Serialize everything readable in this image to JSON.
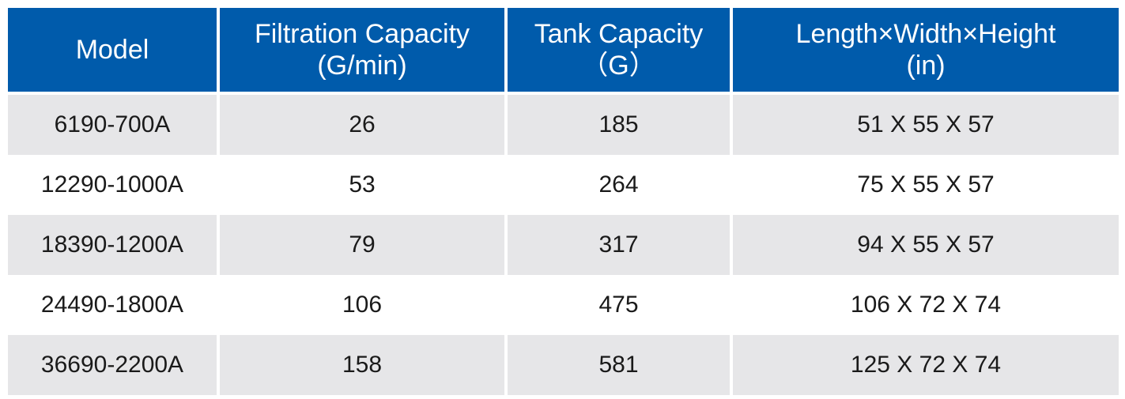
{
  "header": {
    "model": "Model",
    "filtration_line1": "Filtration Capacity",
    "filtration_line2": "(G/min)",
    "tank_line1": "Tank Capacity",
    "tank_line2": "（G）",
    "dimensions_line1": "Length×Width×Height",
    "dimensions_line2": "(in)"
  },
  "rows": [
    {
      "model": "6190-700A",
      "filtration": "26",
      "tank": "185",
      "dimensions": "51 X 55 X 57"
    },
    {
      "model": "12290-1000A",
      "filtration": "53",
      "tank": "264",
      "dimensions": "75 X 55 X 57"
    },
    {
      "model": "18390-1200A",
      "filtration": "79",
      "tank": "317",
      "dimensions": "94 X 55 X 57"
    },
    {
      "model": "24490-1800A",
      "filtration": "106",
      "tank": "475",
      "dimensions": "106 X 72 X 74"
    },
    {
      "model": "36690-2200A",
      "filtration": "158",
      "tank": "581",
      "dimensions": "125 X 72 X 74"
    }
  ],
  "colors": {
    "header_bg": "#005bab",
    "header_text": "#ffffff",
    "shaded_row_bg": "#e6e6e8",
    "plain_row_bg": "#ffffff"
  }
}
